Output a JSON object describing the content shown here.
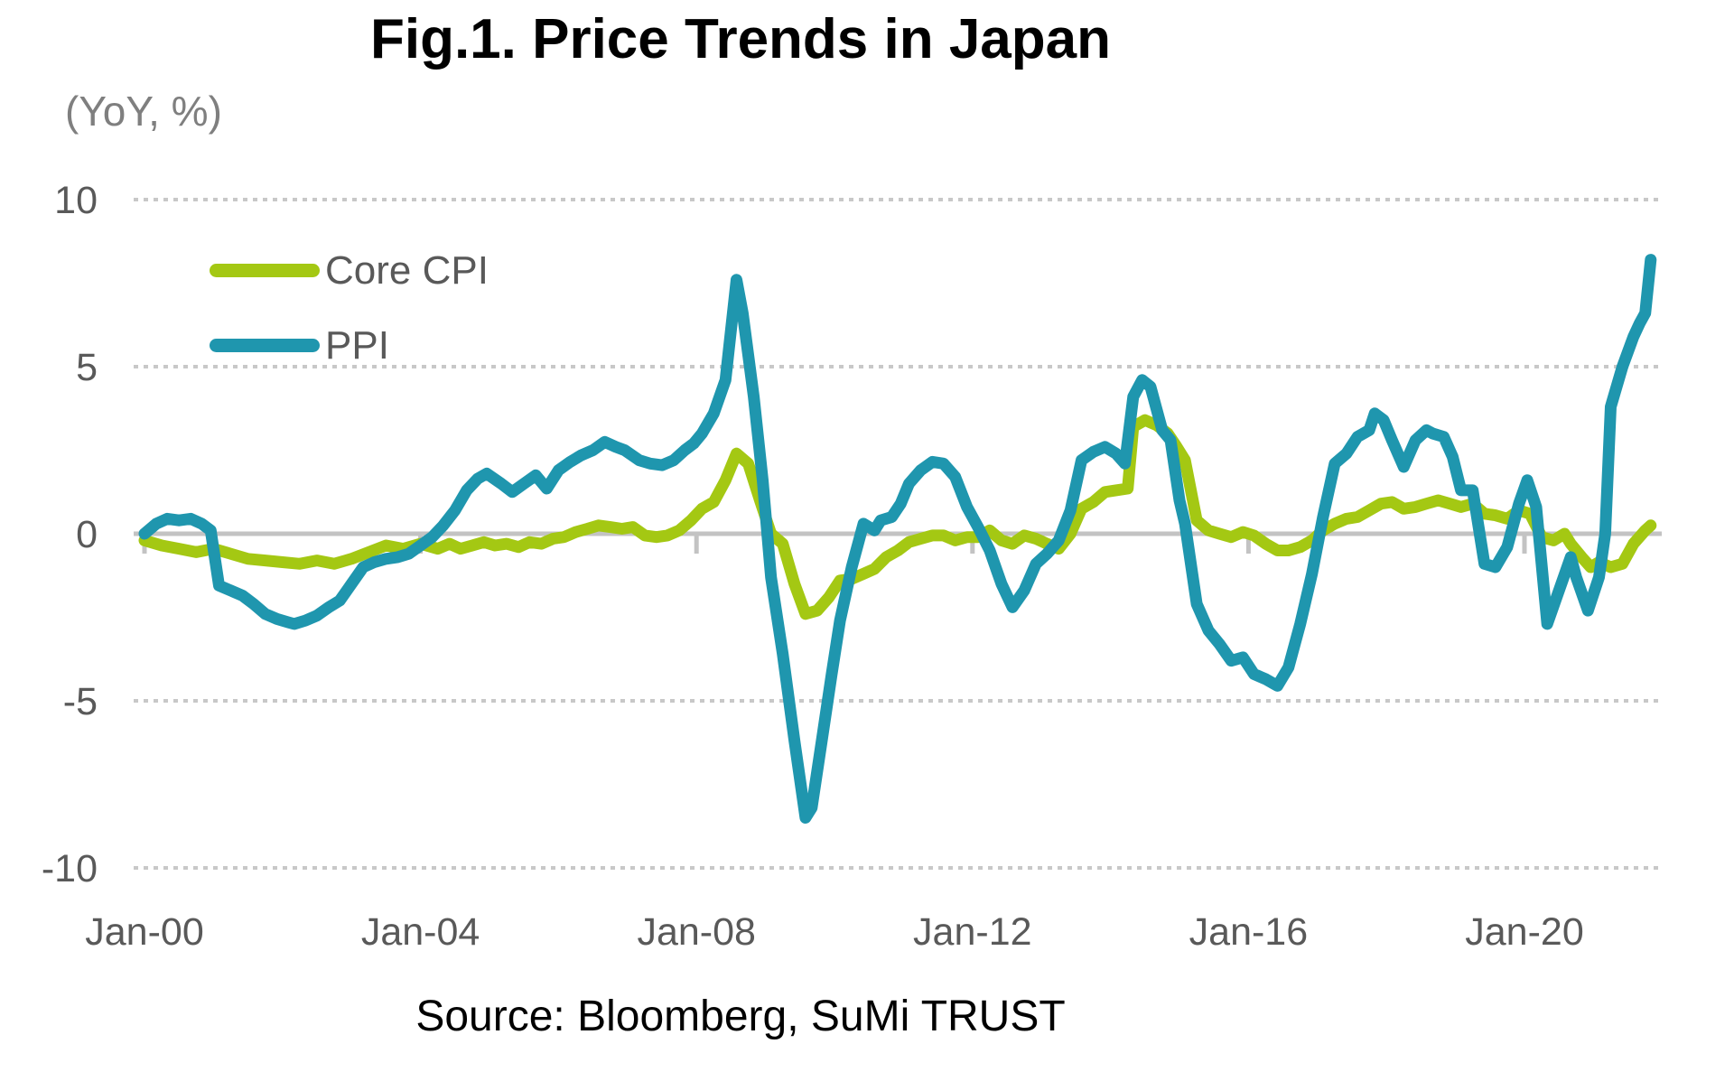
{
  "chart_data": {
    "type": "line",
    "title": "Fig.1. Price Trends in Japan",
    "unit_label": "(YoY, %)",
    "source": "Source: Bloomberg, SuMi TRUST",
    "legend_position": "top-left-inside",
    "grid": "horizontal-dotted",
    "colors": {
      "core_cpi": "#a4c813",
      "ppi": "#1f96ae",
      "gridline": "#c8c8c8",
      "zero_line": "#c3c3c3",
      "axis_text": "#595959",
      "unit_text": "#7f7f7f",
      "title_text": "#000000"
    },
    "y_ticks": [
      10,
      5,
      0,
      -5,
      -10
    ],
    "ylim": [
      -10.8,
      10.8
    ],
    "x_ticks": [
      {
        "label": "Jan-00",
        "t": 2000
      },
      {
        "label": "Jan-04",
        "t": 2004
      },
      {
        "label": "Jan-08",
        "t": 2008
      },
      {
        "label": "Jan-12",
        "t": 2012
      },
      {
        "label": "Jan-16",
        "t": 2016
      },
      {
        "label": "Jan-20",
        "t": 2020
      }
    ],
    "x_range_decimal_years": [
      2000.0,
      2021.92
    ],
    "series": [
      {
        "name": "Core CPI",
        "color": "#a4c813",
        "points": [
          [
            2000.0,
            -0.2
          ],
          [
            2000.25,
            -0.35
          ],
          [
            2000.5,
            -0.45
          ],
          [
            2000.75,
            -0.55
          ],
          [
            2001.0,
            -0.45
          ],
          [
            2001.25,
            -0.6
          ],
          [
            2001.5,
            -0.75
          ],
          [
            2001.75,
            -0.8
          ],
          [
            2002.0,
            -0.85
          ],
          [
            2002.25,
            -0.9
          ],
          [
            2002.5,
            -0.8
          ],
          [
            2002.75,
            -0.9
          ],
          [
            2003.0,
            -0.75
          ],
          [
            2003.25,
            -0.55
          ],
          [
            2003.5,
            -0.35
          ],
          [
            2003.75,
            -0.45
          ],
          [
            2004.0,
            -0.3
          ],
          [
            2004.25,
            -0.45
          ],
          [
            2004.42,
            -0.3
          ],
          [
            2004.58,
            -0.45
          ],
          [
            2004.75,
            -0.35
          ],
          [
            2004.92,
            -0.25
          ],
          [
            2005.08,
            -0.35
          ],
          [
            2005.25,
            -0.3
          ],
          [
            2005.42,
            -0.4
          ],
          [
            2005.58,
            -0.25
          ],
          [
            2005.75,
            -0.3
          ],
          [
            2005.92,
            -0.15
          ],
          [
            2006.08,
            -0.1
          ],
          [
            2006.25,
            0.05
          ],
          [
            2006.42,
            0.15
          ],
          [
            2006.58,
            0.25
          ],
          [
            2006.75,
            0.2
          ],
          [
            2006.92,
            0.15
          ],
          [
            2007.08,
            0.2
          ],
          [
            2007.25,
            -0.05
          ],
          [
            2007.42,
            -0.1
          ],
          [
            2007.58,
            -0.05
          ],
          [
            2007.75,
            0.1
          ],
          [
            2007.92,
            0.4
          ],
          [
            2008.08,
            0.75
          ],
          [
            2008.25,
            0.95
          ],
          [
            2008.42,
            1.6
          ],
          [
            2008.58,
            2.4
          ],
          [
            2008.75,
            2.1
          ],
          [
            2008.92,
            1.0
          ],
          [
            2009.08,
            0.0
          ],
          [
            2009.25,
            -0.3
          ],
          [
            2009.42,
            -1.5
          ],
          [
            2009.58,
            -2.4
          ],
          [
            2009.75,
            -2.3
          ],
          [
            2009.92,
            -1.9
          ],
          [
            2010.08,
            -1.4
          ],
          [
            2010.25,
            -1.35
          ],
          [
            2010.42,
            -1.2
          ],
          [
            2010.58,
            -1.05
          ],
          [
            2010.75,
            -0.7
          ],
          [
            2010.92,
            -0.5
          ],
          [
            2011.08,
            -0.25
          ],
          [
            2011.25,
            -0.15
          ],
          [
            2011.42,
            -0.05
          ],
          [
            2011.58,
            -0.05
          ],
          [
            2011.75,
            -0.2
          ],
          [
            2011.92,
            -0.1
          ],
          [
            2012.08,
            -0.1
          ],
          [
            2012.25,
            0.1
          ],
          [
            2012.42,
            -0.2
          ],
          [
            2012.58,
            -0.3
          ],
          [
            2012.75,
            -0.05
          ],
          [
            2012.92,
            -0.15
          ],
          [
            2013.08,
            -0.3
          ],
          [
            2013.25,
            -0.45
          ],
          [
            2013.42,
            0.0
          ],
          [
            2013.58,
            0.75
          ],
          [
            2013.75,
            0.95
          ],
          [
            2013.92,
            1.25
          ],
          [
            2014.08,
            1.3
          ],
          [
            2014.25,
            1.35
          ],
          [
            2014.33,
            3.2
          ],
          [
            2014.5,
            3.4
          ],
          [
            2014.67,
            3.25
          ],
          [
            2014.83,
            3.0
          ],
          [
            2014.96,
            2.6
          ],
          [
            2015.08,
            2.2
          ],
          [
            2015.25,
            0.4
          ],
          [
            2015.42,
            0.1
          ],
          [
            2015.58,
            0.0
          ],
          [
            2015.75,
            -0.1
          ],
          [
            2015.92,
            0.05
          ],
          [
            2016.08,
            -0.05
          ],
          [
            2016.25,
            -0.3
          ],
          [
            2016.42,
            -0.5
          ],
          [
            2016.58,
            -0.5
          ],
          [
            2016.75,
            -0.4
          ],
          [
            2016.92,
            -0.2
          ],
          [
            2017.08,
            0.1
          ],
          [
            2017.25,
            0.3
          ],
          [
            2017.42,
            0.45
          ],
          [
            2017.58,
            0.5
          ],
          [
            2017.75,
            0.7
          ],
          [
            2017.92,
            0.9
          ],
          [
            2018.08,
            0.95
          ],
          [
            2018.25,
            0.75
          ],
          [
            2018.42,
            0.8
          ],
          [
            2018.58,
            0.9
          ],
          [
            2018.75,
            1.0
          ],
          [
            2018.92,
            0.9
          ],
          [
            2019.08,
            0.8
          ],
          [
            2019.25,
            0.9
          ],
          [
            2019.42,
            0.6
          ],
          [
            2019.58,
            0.55
          ],
          [
            2019.75,
            0.45
          ],
          [
            2019.92,
            0.7
          ],
          [
            2020.08,
            0.6
          ],
          [
            2020.25,
            -0.1
          ],
          [
            2020.42,
            -0.2
          ],
          [
            2020.58,
            0.0
          ],
          [
            2020.67,
            -0.3
          ],
          [
            2020.83,
            -0.7
          ],
          [
            2020.96,
            -1.0
          ],
          [
            2021.08,
            -0.85
          ],
          [
            2021.25,
            -1.0
          ],
          [
            2021.42,
            -0.9
          ],
          [
            2021.58,
            -0.3
          ],
          [
            2021.75,
            0.1
          ],
          [
            2021.83,
            0.25
          ]
        ]
      },
      {
        "name": "PPI",
        "color": "#1f96ae",
        "points": [
          [
            2000.0,
            0.0
          ],
          [
            2000.17,
            0.3
          ],
          [
            2000.33,
            0.45
          ],
          [
            2000.5,
            0.4
          ],
          [
            2000.67,
            0.45
          ],
          [
            2000.83,
            0.3
          ],
          [
            2000.96,
            0.1
          ],
          [
            2001.08,
            -1.55
          ],
          [
            2001.25,
            -1.7
          ],
          [
            2001.42,
            -1.85
          ],
          [
            2001.58,
            -2.1
          ],
          [
            2001.75,
            -2.4
          ],
          [
            2001.92,
            -2.55
          ],
          [
            2002.08,
            -2.65
          ],
          [
            2002.17,
            -2.7
          ],
          [
            2002.33,
            -2.6
          ],
          [
            2002.5,
            -2.45
          ],
          [
            2002.67,
            -2.2
          ],
          [
            2002.83,
            -2.0
          ],
          [
            2003.0,
            -1.5
          ],
          [
            2003.17,
            -1.0
          ],
          [
            2003.33,
            -0.85
          ],
          [
            2003.5,
            -0.75
          ],
          [
            2003.67,
            -0.7
          ],
          [
            2003.83,
            -0.6
          ],
          [
            2004.0,
            -0.35
          ],
          [
            2004.17,
            -0.1
          ],
          [
            2004.33,
            0.25
          ],
          [
            2004.5,
            0.7
          ],
          [
            2004.67,
            1.3
          ],
          [
            2004.83,
            1.65
          ],
          [
            2004.96,
            1.8
          ],
          [
            2005.17,
            1.5
          ],
          [
            2005.33,
            1.25
          ],
          [
            2005.5,
            1.5
          ],
          [
            2005.67,
            1.75
          ],
          [
            2005.83,
            1.35
          ],
          [
            2006.0,
            1.9
          ],
          [
            2006.17,
            2.15
          ],
          [
            2006.33,
            2.35
          ],
          [
            2006.5,
            2.5
          ],
          [
            2006.67,
            2.75
          ],
          [
            2006.83,
            2.6
          ],
          [
            2006.96,
            2.5
          ],
          [
            2007.17,
            2.2
          ],
          [
            2007.33,
            2.1
          ],
          [
            2007.5,
            2.05
          ],
          [
            2007.67,
            2.2
          ],
          [
            2007.83,
            2.5
          ],
          [
            2007.96,
            2.7
          ],
          [
            2008.08,
            3.0
          ],
          [
            2008.25,
            3.6
          ],
          [
            2008.42,
            4.6
          ],
          [
            2008.58,
            7.6
          ],
          [
            2008.67,
            6.6
          ],
          [
            2008.83,
            4.1
          ],
          [
            2008.96,
            1.6
          ],
          [
            2009.08,
            -1.3
          ],
          [
            2009.25,
            -3.6
          ],
          [
            2009.42,
            -6.2
          ],
          [
            2009.58,
            -8.5
          ],
          [
            2009.67,
            -8.2
          ],
          [
            2009.83,
            -6.0
          ],
          [
            2009.96,
            -4.2
          ],
          [
            2010.08,
            -2.6
          ],
          [
            2010.25,
            -1.0
          ],
          [
            2010.42,
            0.3
          ],
          [
            2010.58,
            0.1
          ],
          [
            2010.67,
            0.4
          ],
          [
            2010.83,
            0.5
          ],
          [
            2010.96,
            0.9
          ],
          [
            2011.08,
            1.5
          ],
          [
            2011.25,
            1.9
          ],
          [
            2011.42,
            2.15
          ],
          [
            2011.58,
            2.1
          ],
          [
            2011.75,
            1.7
          ],
          [
            2011.92,
            0.8
          ],
          [
            2012.08,
            0.2
          ],
          [
            2012.25,
            -0.5
          ],
          [
            2012.42,
            -1.5
          ],
          [
            2012.58,
            -2.2
          ],
          [
            2012.75,
            -1.7
          ],
          [
            2012.92,
            -0.9
          ],
          [
            2013.08,
            -0.6
          ],
          [
            2013.25,
            -0.2
          ],
          [
            2013.42,
            0.7
          ],
          [
            2013.58,
            2.2
          ],
          [
            2013.75,
            2.45
          ],
          [
            2013.92,
            2.6
          ],
          [
            2014.08,
            2.4
          ],
          [
            2014.21,
            2.1
          ],
          [
            2014.33,
            4.1
          ],
          [
            2014.46,
            4.6
          ],
          [
            2014.58,
            4.4
          ],
          [
            2014.75,
            3.1
          ],
          [
            2014.87,
            2.8
          ],
          [
            2015.0,
            1.0
          ],
          [
            2015.08,
            0.3
          ],
          [
            2015.25,
            -2.1
          ],
          [
            2015.42,
            -2.9
          ],
          [
            2015.58,
            -3.3
          ],
          [
            2015.75,
            -3.8
          ],
          [
            2015.92,
            -3.7
          ],
          [
            2016.08,
            -4.2
          ],
          [
            2016.25,
            -4.35
          ],
          [
            2016.42,
            -4.55
          ],
          [
            2016.58,
            -4.0
          ],
          [
            2016.75,
            -2.7
          ],
          [
            2016.92,
            -1.2
          ],
          [
            2017.08,
            0.5
          ],
          [
            2017.25,
            2.1
          ],
          [
            2017.42,
            2.4
          ],
          [
            2017.58,
            2.9
          ],
          [
            2017.75,
            3.1
          ],
          [
            2017.83,
            3.6
          ],
          [
            2017.96,
            3.4
          ],
          [
            2018.08,
            2.8
          ],
          [
            2018.25,
            2.0
          ],
          [
            2018.42,
            2.8
          ],
          [
            2018.58,
            3.1
          ],
          [
            2018.67,
            3.0
          ],
          [
            2018.83,
            2.9
          ],
          [
            2018.96,
            2.3
          ],
          [
            2019.08,
            1.3
          ],
          [
            2019.25,
            1.3
          ],
          [
            2019.42,
            -0.9
          ],
          [
            2019.58,
            -1.0
          ],
          [
            2019.75,
            -0.4
          ],
          [
            2019.92,
            0.9
          ],
          [
            2020.04,
            1.6
          ],
          [
            2020.17,
            0.8
          ],
          [
            2020.33,
            -2.7
          ],
          [
            2020.5,
            -1.7
          ],
          [
            2020.67,
            -0.7
          ],
          [
            2020.75,
            -1.3
          ],
          [
            2020.92,
            -2.3
          ],
          [
            2021.08,
            -1.3
          ],
          [
            2021.17,
            0.0
          ],
          [
            2021.25,
            3.8
          ],
          [
            2021.42,
            5.0
          ],
          [
            2021.58,
            5.9
          ],
          [
            2021.67,
            6.3
          ],
          [
            2021.75,
            6.6
          ],
          [
            2021.83,
            8.2
          ]
        ]
      }
    ]
  }
}
